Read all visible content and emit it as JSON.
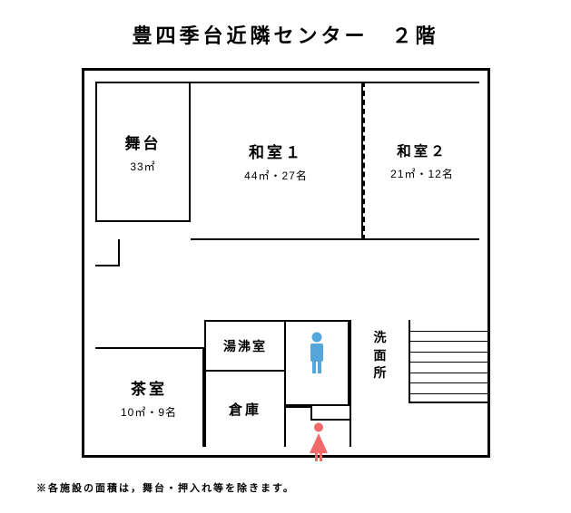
{
  "title": "豊四季台近隣センター　２階",
  "footnote": "※各施設の面積は，舞台・押入れ等を除きます。",
  "rooms": {
    "stage": {
      "name": "舞台",
      "spec": "33㎡"
    },
    "washitsu1": {
      "name": "和室１",
      "spec": "44㎡・27名"
    },
    "washitsu2": {
      "name": "和室２",
      "spec": "21㎡・12名"
    },
    "chashitsu": {
      "name": "茶室",
      "spec": "10㎡・9名"
    },
    "yuwakashi": {
      "name": "湯沸室"
    },
    "souko": {
      "name": "倉庫"
    },
    "senmen": {
      "name_line1": "洗",
      "name_line2": "面",
      "name_line3": "所"
    }
  },
  "colors": {
    "male": "#54a6db",
    "female": "#f16a6a",
    "line": "#000000",
    "bg": "#ffffff"
  },
  "stairs": {
    "steps": 7
  }
}
